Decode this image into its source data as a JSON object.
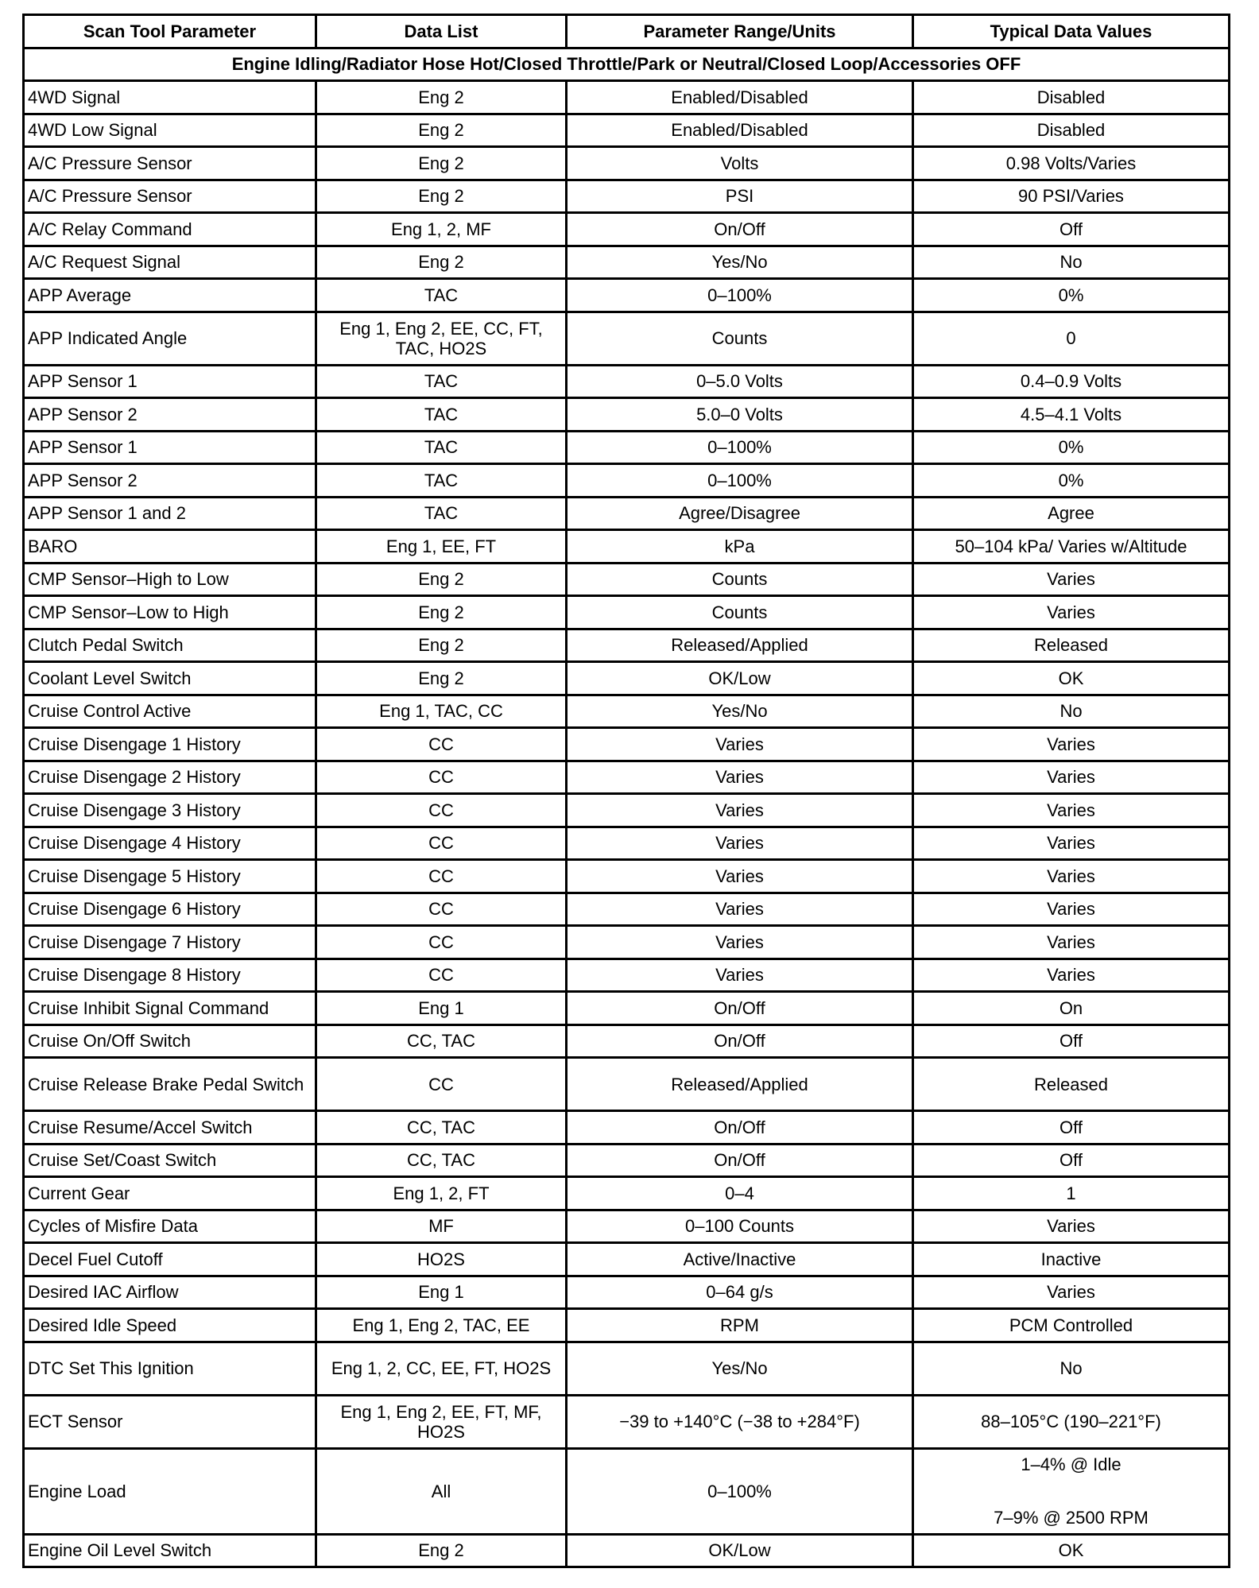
{
  "headers": [
    "Scan Tool Parameter",
    "Data List",
    "Parameter Range/Units",
    "Typical Data Values"
  ],
  "condition": "Engine Idling/Radiator Hose Hot/Closed Throttle/Park or Neutral/Closed Loop/Accessories OFF",
  "rows": [
    [
      "4WD Signal",
      "Eng 2",
      "Enabled/Disabled",
      "Disabled"
    ],
    [
      "4WD Low Signal",
      "Eng 2",
      "Enabled/Disabled",
      "Disabled"
    ],
    [
      "A/C Pressure Sensor",
      "Eng 2",
      "Volts",
      "0.98 Volts/Varies"
    ],
    [
      "A/C Pressure Sensor",
      "Eng 2",
      "PSI",
      "90 PSI/Varies"
    ],
    [
      "A/C Relay Command",
      "Eng 1, 2, MF",
      "On/Off",
      "Off"
    ],
    [
      "A/C Request Signal",
      "Eng 2",
      "Yes/No",
      "No"
    ],
    [
      "APP Average",
      "TAC",
      "0–100%",
      "0%"
    ],
    [
      "APP Indicated Angle",
      "Eng 1, Eng 2, EE, CC, FT, TAC, HO2S",
      "Counts",
      "0"
    ],
    [
      "APP Sensor 1",
      "TAC",
      "0–5.0 Volts",
      "0.4–0.9 Volts"
    ],
    [
      "APP Sensor 2",
      "TAC",
      "5.0–0 Volts",
      "4.5–4.1 Volts"
    ],
    [
      "APP Sensor 1",
      "TAC",
      "0–100%",
      "0%"
    ],
    [
      "APP Sensor 2",
      "TAC",
      "0–100%",
      "0%"
    ],
    [
      "APP Sensor 1 and 2",
      "TAC",
      "Agree/Disagree",
      "Agree"
    ],
    [
      "BARO",
      "Eng 1, EE, FT",
      "kPa",
      "50–104 kPa/ Varies w/Altitude"
    ],
    [
      "CMP Sensor–High to Low",
      "Eng 2",
      "Counts",
      "Varies"
    ],
    [
      "CMP Sensor–Low to High",
      "Eng 2",
      "Counts",
      "Varies"
    ],
    [
      "Clutch Pedal Switch",
      "Eng 2",
      "Released/Applied",
      "Released"
    ],
    [
      "Coolant Level Switch",
      "Eng 2",
      "OK/Low",
      "OK"
    ],
    [
      "Cruise Control Active",
      "Eng 1, TAC, CC",
      "Yes/No",
      "No"
    ],
    [
      "Cruise Disengage 1 History",
      "CC",
      "Varies",
      "Varies"
    ],
    [
      "Cruise Disengage 2 History",
      "CC",
      "Varies",
      "Varies"
    ],
    [
      "Cruise Disengage 3 History",
      "CC",
      "Varies",
      "Varies"
    ],
    [
      "Cruise Disengage 4 History",
      "CC",
      "Varies",
      "Varies"
    ],
    [
      "Cruise Disengage 5 History",
      "CC",
      "Varies",
      "Varies"
    ],
    [
      "Cruise Disengage 6 History",
      "CC",
      "Varies",
      "Varies"
    ],
    [
      "Cruise Disengage 7 History",
      "CC",
      "Varies",
      "Varies"
    ],
    [
      "Cruise Disengage 8 History",
      "CC",
      "Varies",
      "Varies"
    ],
    [
      "Cruise Inhibit Signal Command",
      "Eng 1",
      "On/Off",
      "On"
    ],
    [
      "Cruise On/Off Switch",
      "CC, TAC",
      "On/Off",
      "Off"
    ],
    [
      "Cruise Release Brake Pedal Switch",
      "CC",
      "Released/Applied",
      "Released"
    ],
    [
      "Cruise Resume/Accel Switch",
      "CC, TAC",
      "On/Off",
      "Off"
    ],
    [
      "Cruise Set/Coast Switch",
      "CC, TAC",
      "On/Off",
      "Off"
    ],
    [
      "Current Gear",
      "Eng 1, 2, FT",
      "0–4",
      "1"
    ],
    [
      "Cycles of Misfire Data",
      "MF",
      "0–100 Counts",
      "Varies"
    ],
    [
      "Decel Fuel Cutoff",
      "HO2S",
      "Active/Inactive",
      "Inactive"
    ],
    [
      "Desired IAC Airflow",
      "Eng 1",
      "0–64 g/s",
      "Varies"
    ],
    [
      "Desired Idle Speed",
      "Eng 1, Eng 2, TAC, EE",
      "RPM",
      "PCM Controlled"
    ],
    [
      "DTC Set This Ignition",
      "Eng 1, 2, CC, EE, FT, HO2S",
      "Yes/No",
      "No"
    ],
    [
      "ECT Sensor",
      "Eng 1, Eng 2, EE, FT, MF, HO2S",
      "−39 to +140°C (−38 to +284°F)",
      "88–105°C (190–221°F)"
    ],
    [
      "Engine Load",
      "All",
      "0–100%",
      [
        "1–4% @ Idle",
        "7–9% @ 2500 RPM"
      ]
    ],
    [
      "Engine Oil Level Switch",
      "Eng 2",
      "OK/Low",
      "OK"
    ]
  ]
}
